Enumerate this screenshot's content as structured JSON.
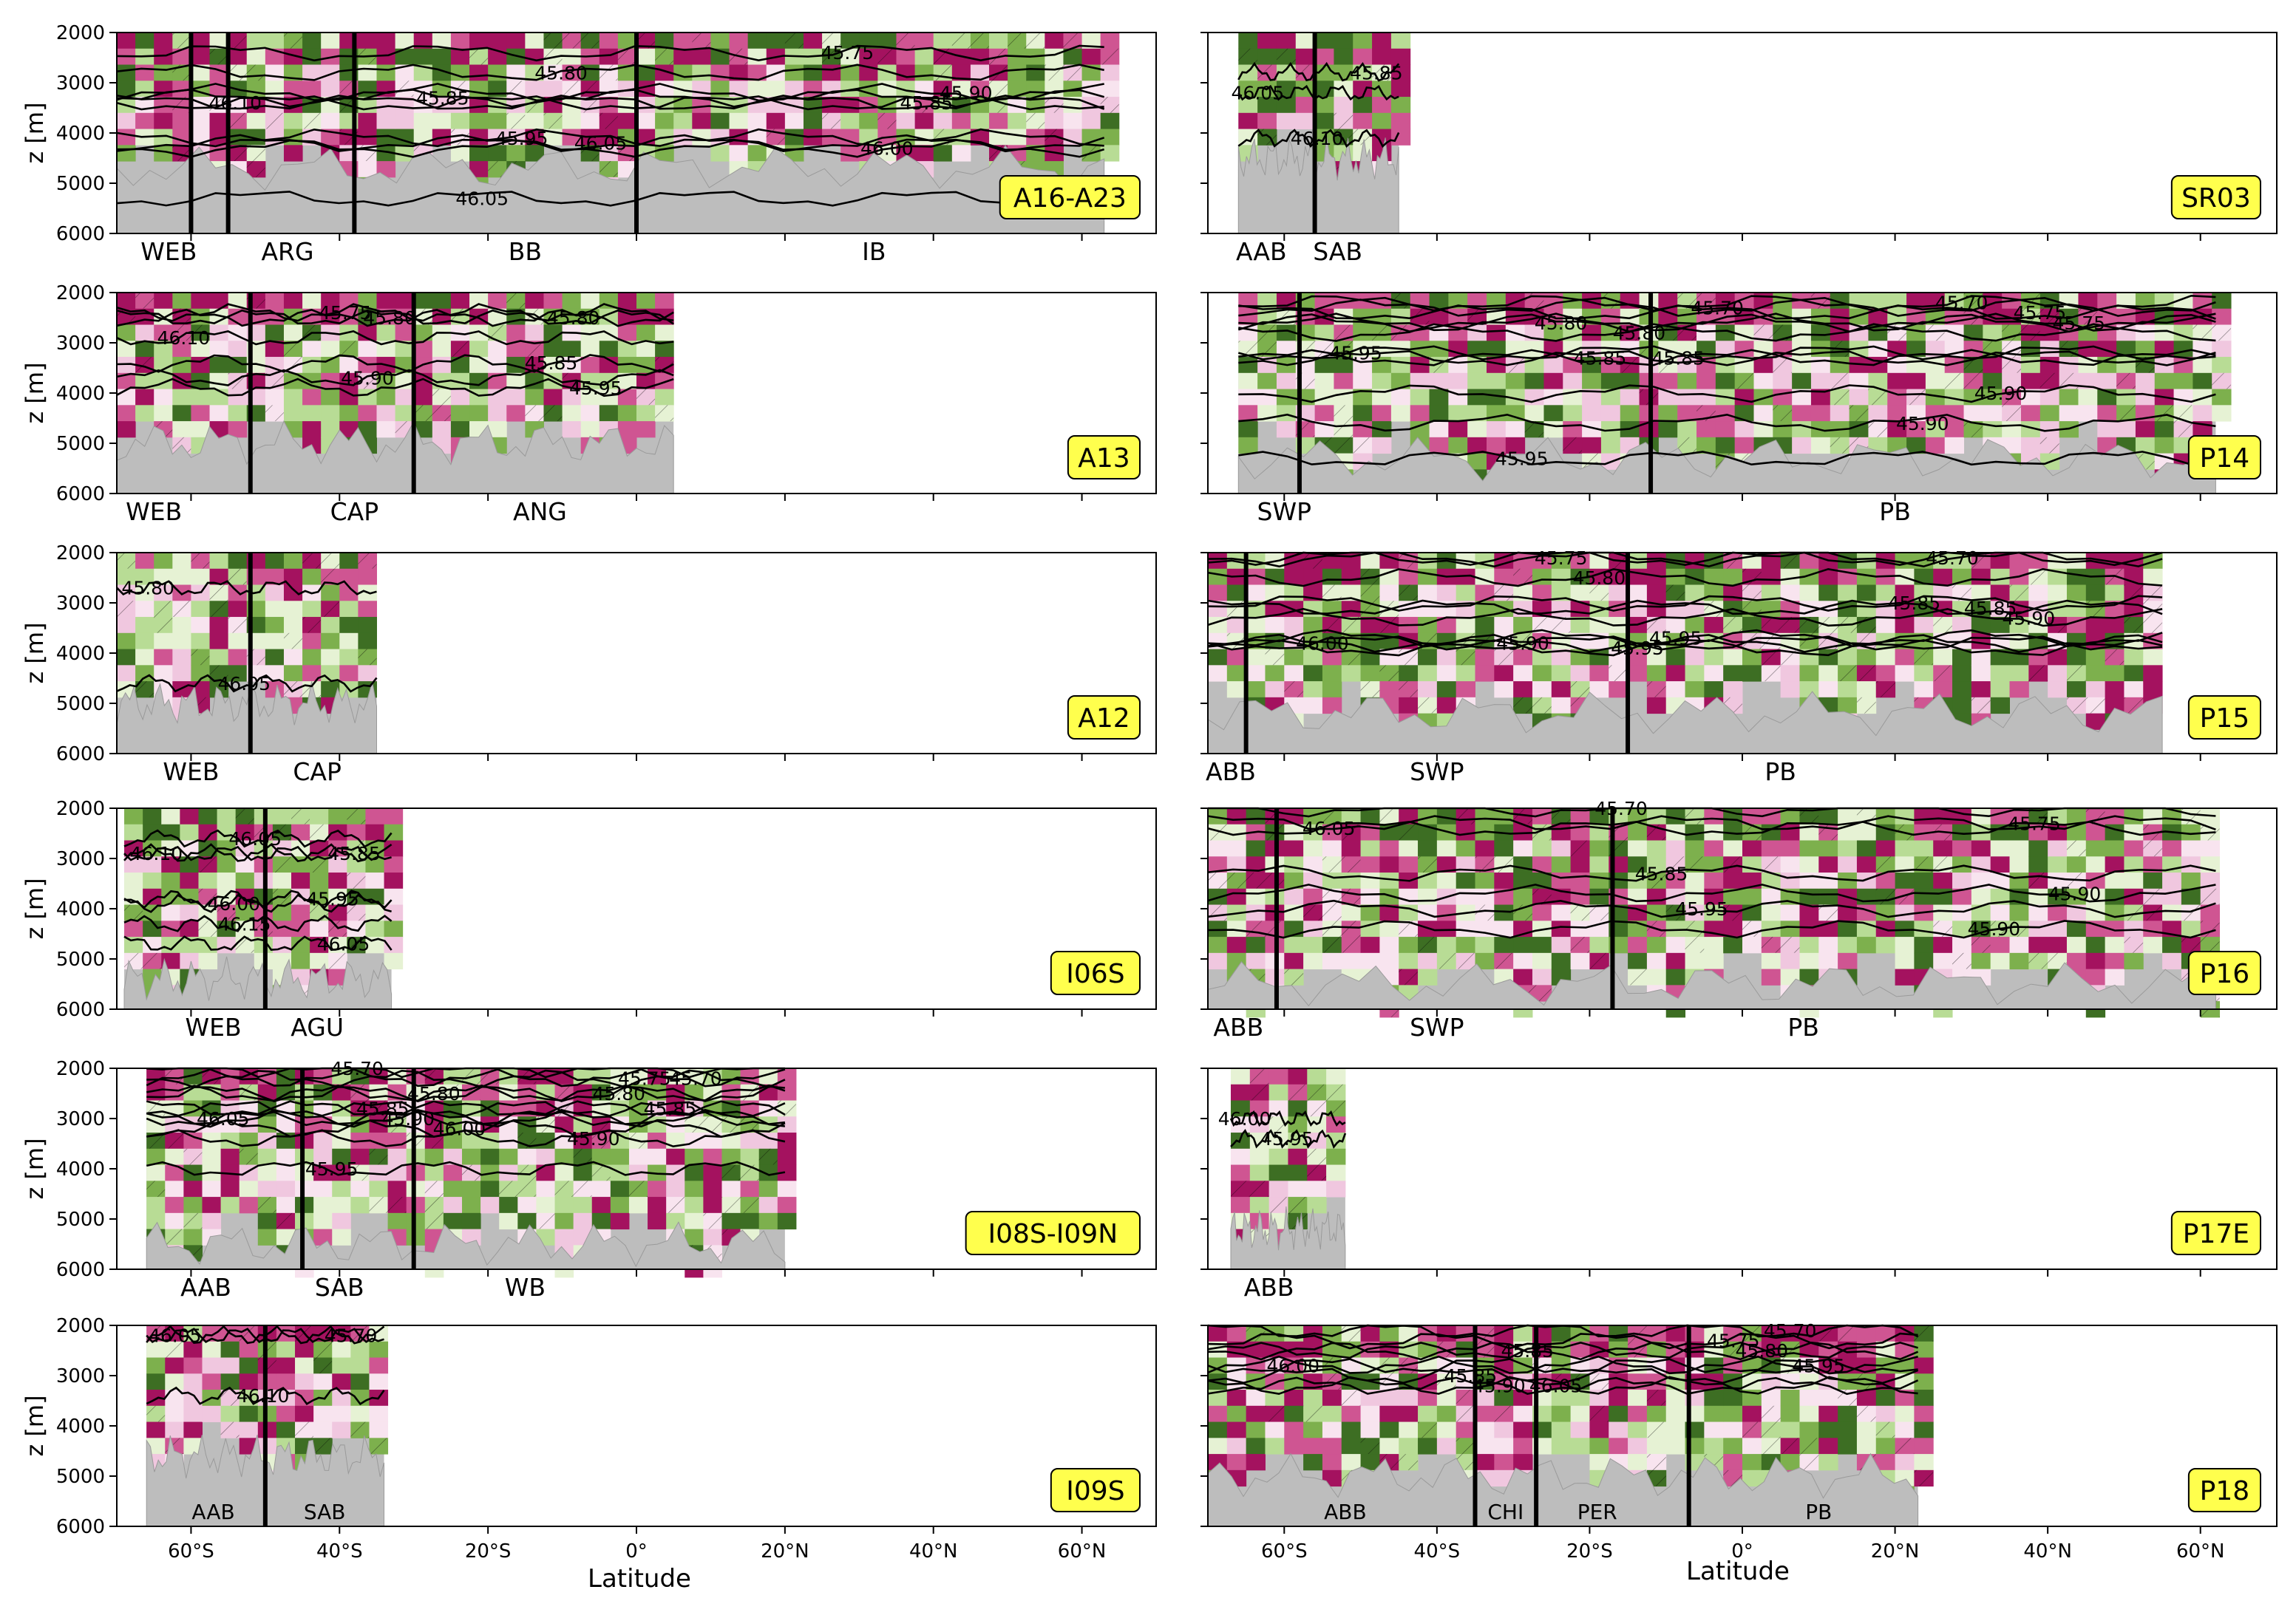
{
  "xlabel": "Latitude",
  "ylabel": "z [m]",
  "x_ticks": [
    "60°S",
    "40°S",
    "20°S",
    "0°",
    "20°N",
    "40°N",
    "60°N"
  ],
  "x_tick_values": [
    -60,
    -40,
    -20,
    0,
    20,
    40,
    60
  ],
  "y_ticks": [
    "2000",
    "3000",
    "4000",
    "5000",
    "6000"
  ],
  "y_tick_values": [
    2000,
    3000,
    4000,
    5000,
    6000
  ],
  "colors": {
    "seafloor": "#bdbdbd",
    "dark_pink": "#a4125f",
    "pink": "#cf5592",
    "light_pink": "#f0c7df",
    "pale_pink": "#f8e4ef",
    "pale_green": "#e6f2d4",
    "light_green": "#b8dc95",
    "green": "#7db04d",
    "dark_green": "#3d6e23",
    "label_box": "#ffff4d",
    "contour": "#000000"
  },
  "chart_data": [
    {
      "type": "heatmap",
      "panel": "A16-A23",
      "column": "left",
      "xlim": [
        -70,
        70
      ],
      "ylim": [
        6000,
        2000
      ],
      "section_extent": [
        -70,
        63
      ],
      "seafloor_depth": 4700,
      "basins": [
        {
          "name": "WEB",
          "center": -63
        },
        {
          "name": "ARG",
          "center": -47
        },
        {
          "name": "BB",
          "center": -15
        },
        {
          "name": "IB",
          "center": 32
        }
      ],
      "boundaries": [
        -60,
        -55,
        -38,
        0
      ],
      "contours": [
        {
          "label": "46.10",
          "depth": 3400
        },
        {
          "label": "46.05",
          "depth": 4200
        },
        {
          "label": "45.90",
          "depth": 3200
        },
        {
          "label": "45.80",
          "depth": 2800
        },
        {
          "label": "45.85",
          "depth": 3400
        },
        {
          "label": "45.95",
          "depth": 4100
        },
        {
          "label": "46.00",
          "depth": 4300
        },
        {
          "label": "46.05",
          "depth": 5300
        },
        {
          "label": "45.75",
          "depth": 2400
        },
        {
          "label": "45.85",
          "depth": 3300
        }
      ]
    },
    {
      "type": "heatmap",
      "panel": "SR03",
      "column": "right",
      "xlim": [
        -70,
        70
      ],
      "ylim": [
        6000,
        2000
      ],
      "section_extent": [
        -66,
        -45
      ],
      "seafloor_depth": 4500,
      "basins": [
        {
          "name": "AAB",
          "center": -63
        },
        {
          "name": "SAB",
          "center": -53
        }
      ],
      "boundaries": [
        -56
      ],
      "contours": [
        {
          "label": "46.05",
          "depth": 3200
        },
        {
          "label": "46.10",
          "depth": 4100
        },
        {
          "label": "45.85",
          "depth": 2800
        }
      ]
    },
    {
      "type": "heatmap",
      "panel": "A13",
      "column": "left",
      "xlim": [
        -70,
        70
      ],
      "ylim": [
        6000,
        2000
      ],
      "section_extent": [
        -70,
        5
      ],
      "seafloor_depth": 5000,
      "basins": [
        {
          "name": "WEB",
          "center": -65
        },
        {
          "name": "CAP",
          "center": -38
        },
        {
          "name": "ANG",
          "center": -13
        }
      ],
      "boundaries": [
        -52,
        -30
      ],
      "contours": [
        {
          "label": "46.10",
          "depth": 2900
        },
        {
          "label": "45.80",
          "depth": 2500
        },
        {
          "label": "45.95",
          "depth": 3900
        },
        {
          "label": "45.90",
          "depth": 3700
        },
        {
          "label": "45.80",
          "depth": 2500
        },
        {
          "label": "45.75",
          "depth": 2400
        },
        {
          "label": "45.85",
          "depth": 3400
        }
      ]
    },
    {
      "type": "heatmap",
      "panel": "P14",
      "column": "right",
      "xlim": [
        -70,
        70
      ],
      "ylim": [
        6000,
        2000
      ],
      "section_extent": [
        -66,
        62
      ],
      "seafloor_depth": 5300,
      "basins": [
        {
          "name": "SWP",
          "center": -60
        },
        {
          "name": "PB",
          "center": 20
        }
      ],
      "boundaries": [
        -58,
        -12
      ],
      "contours": [
        {
          "label": "45.95",
          "depth": 3200
        },
        {
          "label": "45.70",
          "depth": 2300
        },
        {
          "label": "45.75",
          "depth": 2600
        },
        {
          "label": "45.85",
          "depth": 3300
        },
        {
          "label": "45.75",
          "depth": 2400
        },
        {
          "label": "45.80",
          "depth": 2800
        },
        {
          "label": "45.90",
          "depth": 4000
        },
        {
          "label": "45.85",
          "depth": 3300
        },
        {
          "label": "45.70",
          "depth": 2200
        },
        {
          "label": "45.80",
          "depth": 2600
        },
        {
          "label": "45.90",
          "depth": 4600
        },
        {
          "label": "45.95",
          "depth": 5300
        }
      ]
    },
    {
      "type": "heatmap",
      "panel": "A12",
      "column": "left",
      "xlim": [
        -70,
        70
      ],
      "ylim": [
        6000,
        2000
      ],
      "section_extent": [
        -70,
        -35
      ],
      "seafloor_depth": 5000,
      "basins": [
        {
          "name": "WEB",
          "center": -60
        },
        {
          "name": "CAP",
          "center": -43
        }
      ],
      "boundaries": [
        -52
      ],
      "contours": [
        {
          "label": "45.80",
          "depth": 2700
        },
        {
          "label": "46.05",
          "depth": 4600
        }
      ]
    },
    {
      "type": "heatmap",
      "panel": "P15",
      "column": "right",
      "xlim": [
        -70,
        70
      ],
      "ylim": [
        6000,
        2000
      ],
      "section_extent": [
        -70,
        55
      ],
      "seafloor_depth": 5200,
      "basins": [
        {
          "name": "ABB",
          "center": -67
        },
        {
          "name": "SWP",
          "center": -40
        },
        {
          "name": "PB",
          "center": 5
        }
      ],
      "boundaries": [
        -65,
        -15
      ],
      "contours": [
        {
          "label": "46.00",
          "depth": 3800
        },
        {
          "label": "45.95",
          "depth": 3700
        },
        {
          "label": "45.90",
          "depth": 3300
        },
        {
          "label": "45.95",
          "depth": 3900
        },
        {
          "label": "45.85",
          "depth": 3100
        },
        {
          "label": "45.80",
          "depth": 2500
        },
        {
          "label": "45.70",
          "depth": 2100
        },
        {
          "label": "45.75",
          "depth": 2100
        },
        {
          "label": "45.85",
          "depth": 3000
        },
        {
          "label": "45.90",
          "depth": 3800
        }
      ]
    },
    {
      "type": "heatmap",
      "panel": "I06S",
      "column": "left",
      "xlim": [
        -70,
        70
      ],
      "ylim": [
        6000,
        2000
      ],
      "section_extent": [
        -69,
        -33
      ],
      "seafloor_depth": 5400,
      "basins": [
        {
          "name": "WEB",
          "center": -57
        },
        {
          "name": "AGU",
          "center": -43
        }
      ],
      "boundaries": [
        -50
      ],
      "contours": [
        {
          "label": "46.10",
          "depth": 2900
        },
        {
          "label": "46.05",
          "depth": 2600
        },
        {
          "label": "45.85",
          "depth": 2900
        },
        {
          "label": "46.15",
          "depth": 4300
        },
        {
          "label": "46.05",
          "depth": 4700
        },
        {
          "label": "46.00",
          "depth": 3900
        },
        {
          "label": "45.95",
          "depth": 3800
        }
      ]
    },
    {
      "type": "heatmap",
      "panel": "P16",
      "column": "right",
      "xlim": [
        -70,
        70
      ],
      "ylim": [
        6000,
        2000
      ],
      "section_extent": [
        -70,
        62
      ],
      "seafloor_depth": 5500,
      "basins": [
        {
          "name": "ABB",
          "center": -66
        },
        {
          "name": "SWP",
          "center": -40
        },
        {
          "name": "PB",
          "center": 8
        }
      ],
      "boundaries": [
        -61,
        -17
      ],
      "contours": [
        {
          "label": "46.05",
          "depth": 2400
        },
        {
          "label": "45.95",
          "depth": 4000
        },
        {
          "label": "45.90",
          "depth": 3700
        },
        {
          "label": "45.85",
          "depth": 3300
        },
        {
          "label": "45.75",
          "depth": 2300
        },
        {
          "label": "45.70",
          "depth": 2000
        },
        {
          "label": "45.90",
          "depth": 4400
        }
      ]
    },
    {
      "type": "heatmap",
      "panel": "I08S-I09N",
      "column": "left",
      "xlim": [
        -70,
        70
      ],
      "ylim": [
        6000,
        2000
      ],
      "section_extent": [
        -66,
        20
      ],
      "seafloor_depth": 5500,
      "basins": [
        {
          "name": "AAB",
          "center": -58
        },
        {
          "name": "SAB",
          "center": -40
        },
        {
          "name": "WB",
          "center": -15
        }
      ],
      "boundaries": [
        -45,
        -30
      ],
      "contours": [
        {
          "label": "46.05",
          "depth": 3000
        },
        {
          "label": "46.00",
          "depth": 3200
        },
        {
          "label": "45.70",
          "depth": 2200
        },
        {
          "label": "45.80",
          "depth": 2500
        },
        {
          "label": "45.85",
          "depth": 2800
        },
        {
          "label": "45.90",
          "depth": 3000
        },
        {
          "label": "45.75",
          "depth": 2200
        },
        {
          "label": "45.85",
          "depth": 2800
        },
        {
          "label": "45.80",
          "depth": 2500
        },
        {
          "label": "45.70",
          "depth": 2000
        },
        {
          "label": "45.90",
          "depth": 3400
        },
        {
          "label": "45.95",
          "depth": 4000
        }
      ]
    },
    {
      "type": "heatmap",
      "panel": "P17E",
      "column": "right",
      "xlim": [
        -70,
        70
      ],
      "ylim": [
        6000,
        2000
      ],
      "section_extent": [
        -67,
        -52
      ],
      "seafloor_depth": 5200,
      "basins": [
        {
          "name": "ABB",
          "center": -62
        }
      ],
      "boundaries": [],
      "contours": [
        {
          "label": "46.00",
          "depth": 3000
        },
        {
          "label": "45.95",
          "depth": 3400
        }
      ]
    },
    {
      "type": "heatmap",
      "panel": "I09S",
      "column": "left",
      "xlim": [
        -70,
        70
      ],
      "ylim": [
        6000,
        2000
      ],
      "section_extent": [
        -66,
        -34
      ],
      "seafloor_depth": 4600,
      "basins": [
        {
          "name": "AAB",
          "center": -57
        },
        {
          "name": "SAB",
          "center": -42
        }
      ],
      "boundaries": [
        -50
      ],
      "contours": [
        {
          "label": "46.05",
          "depth": 2200
        },
        {
          "label": "46.10",
          "depth": 3400
        },
        {
          "label": "45.70",
          "depth": 2200
        }
      ]
    },
    {
      "type": "heatmap",
      "panel": "P18",
      "column": "right",
      "xlim": [
        -70,
        70
      ],
      "ylim": [
        6000,
        2000
      ],
      "section_extent": [
        -70,
        23
      ],
      "seafloor_depth": 5000,
      "basins": [
        {
          "name": "ABB",
          "center": -52
        },
        {
          "name": "CHI",
          "center": -31
        },
        {
          "name": "PER",
          "center": -19
        },
        {
          "name": "PB",
          "center": 10
        }
      ],
      "boundaries": [
        -35,
        -27,
        -7
      ],
      "contours": [
        {
          "label": "46.00",
          "depth": 2800
        },
        {
          "label": "46.05",
          "depth": 3200
        },
        {
          "label": "45.95",
          "depth": 2800
        },
        {
          "label": "45.85",
          "depth": 2500
        },
        {
          "label": "45.70",
          "depth": 2100
        },
        {
          "label": "45.90",
          "depth": 3200
        },
        {
          "label": "45.80",
          "depth": 2500
        },
        {
          "label": "45.85",
          "depth": 3000
        },
        {
          "label": "45.75",
          "depth": 2300
        }
      ]
    }
  ]
}
